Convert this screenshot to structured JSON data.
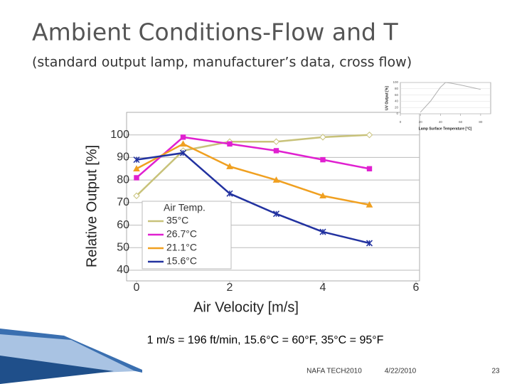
{
  "slide": {
    "title": "Ambient Conditions-Flow and T",
    "subtitle": "(standard output lamp, manufacturer’s data, cross flow)",
    "note": "1 m/s = 196 ft/min, 15.6°C = 60°F, 35°C = 95°F",
    "footer": {
      "event": "NAFA TECH2010",
      "date": "4/22/2010",
      "page": "23"
    }
  },
  "chart_data": [
    {
      "type": "line",
      "x_label": "Air Velocity [m/s]",
      "y_label": "Relative Output [%]",
      "x": [
        0,
        1,
        2,
        3,
        4,
        5
      ],
      "series": [
        {
          "name": "35°C",
          "color": "#c8c27a",
          "marker": "diamond",
          "values": [
            73,
            93,
            97,
            97,
            99,
            100
          ]
        },
        {
          "name": "26.7°C",
          "color": "#e020d0",
          "marker": "square",
          "values": [
            81,
            99,
            96,
            93,
            89,
            85
          ]
        },
        {
          "name": "21.1°C",
          "color": "#f0a020",
          "marker": "triangle",
          "values": [
            85,
            96,
            86,
            80,
            73,
            69
          ]
        },
        {
          "name": "15.6°C",
          "color": "#2232a0",
          "marker": "star",
          "values": [
            89,
            92,
            74,
            65,
            57,
            52
          ]
        }
      ],
      "legend_title": "Air Temp.",
      "legend": "lower left",
      "xlim": [
        0,
        6
      ],
      "xticks": [
        0,
        2,
        4,
        6
      ],
      "ylim": [
        40,
        110
      ],
      "yticks": [
        40,
        50,
        60,
        70,
        80,
        90,
        100
      ],
      "grid": true
    },
    {
      "type": "line",
      "x_label": "Lamp Surface Temperature [°C]",
      "y_label": "UV Output [%]",
      "x": [
        20,
        30,
        40,
        45,
        50,
        60,
        70,
        80
      ],
      "series": [
        {
          "color": "#b0b0b0",
          "values": [
            5,
            40,
            85,
            100,
            98,
            92,
            85,
            78
          ]
        }
      ],
      "xlim": [
        0,
        90
      ],
      "xticks": [
        0,
        20,
        40,
        60,
        80
      ],
      "ylim": [
        0,
        100
      ],
      "yticks": [
        0,
        20,
        40,
        60,
        80,
        100
      ],
      "grid": true
    }
  ]
}
